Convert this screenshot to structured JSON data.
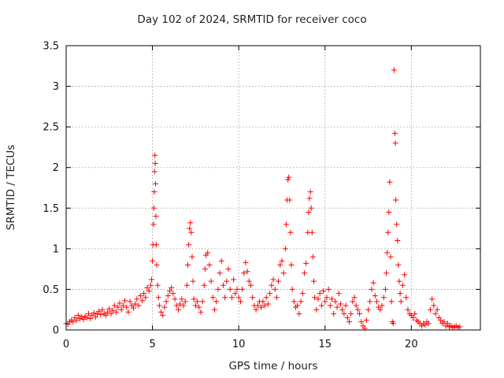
{
  "chart_data": {
    "type": "scatter",
    "title": "Day 102 of 2024, SRMTID for receiver coco",
    "xlabel": "GPS time / hours",
    "ylabel": "SRMTID / TECUs",
    "xlim": [
      0,
      24
    ],
    "ylim": [
      0,
      3.5
    ],
    "xticks": [
      0,
      5,
      10,
      15,
      20
    ],
    "yticks": [
      0,
      0.5,
      1,
      1.5,
      2,
      2.5,
      3,
      3.5
    ],
    "ytick_labels": [
      "0",
      "0.5",
      "1",
      "1.5",
      "2",
      "2.5",
      "3",
      "3.5"
    ],
    "grid": true,
    "marker": "+",
    "color": "#ff0000",
    "series": [
      {
        "name": "SRMTID",
        "points": [
          [
            0.0,
            0.08
          ],
          [
            0.1,
            0.07
          ],
          [
            0.2,
            0.1
          ],
          [
            0.3,
            0.12
          ],
          [
            0.4,
            0.1
          ],
          [
            0.5,
            0.15
          ],
          [
            0.6,
            0.12
          ],
          [
            0.7,
            0.18
          ],
          [
            0.8,
            0.14
          ],
          [
            0.9,
            0.16
          ],
          [
            1.0,
            0.13
          ],
          [
            1.1,
            0.17
          ],
          [
            1.2,
            0.15
          ],
          [
            1.3,
            0.2
          ],
          [
            1.4,
            0.14
          ],
          [
            1.5,
            0.18
          ],
          [
            1.6,
            0.21
          ],
          [
            1.7,
            0.16
          ],
          [
            1.8,
            0.2
          ],
          [
            1.9,
            0.23
          ],
          [
            2.0,
            0.19
          ],
          [
            2.1,
            0.25
          ],
          [
            2.2,
            0.2
          ],
          [
            2.3,
            0.18
          ],
          [
            2.4,
            0.22
          ],
          [
            2.5,
            0.26
          ],
          [
            2.6,
            0.2
          ],
          [
            2.7,
            0.24
          ],
          [
            2.8,
            0.3
          ],
          [
            2.9,
            0.22
          ],
          [
            3.0,
            0.28
          ],
          [
            3.1,
            0.33
          ],
          [
            3.2,
            0.25
          ],
          [
            3.3,
            0.3
          ],
          [
            3.4,
            0.36
          ],
          [
            3.5,
            0.28
          ],
          [
            3.6,
            0.22
          ],
          [
            3.7,
            0.35
          ],
          [
            3.8,
            0.3
          ],
          [
            3.9,
            0.27
          ],
          [
            4.0,
            0.32
          ],
          [
            4.1,
            0.38
          ],
          [
            4.2,
            0.3
          ],
          [
            4.3,
            0.42
          ],
          [
            4.4,
            0.36
          ],
          [
            4.5,
            0.45
          ],
          [
            4.6,
            0.4
          ],
          [
            4.7,
            0.52
          ],
          [
            4.8,
            0.48
          ],
          [
            4.9,
            0.55
          ],
          [
            4.95,
            0.62
          ],
          [
            5.0,
            0.85
          ],
          [
            5.03,
            1.05
          ],
          [
            5.06,
            1.3
          ],
          [
            5.08,
            1.5
          ],
          [
            5.1,
            1.7
          ],
          [
            5.12,
            1.95
          ],
          [
            5.14,
            2.15
          ],
          [
            5.16,
            2.05
          ],
          [
            5.18,
            1.8
          ],
          [
            5.2,
            1.4
          ],
          [
            5.22,
            1.05
          ],
          [
            5.25,
            0.8
          ],
          [
            5.3,
            0.55
          ],
          [
            5.35,
            0.4
          ],
          [
            5.4,
            0.3
          ],
          [
            5.5,
            0.22
          ],
          [
            5.6,
            0.18
          ],
          [
            5.7,
            0.28
          ],
          [
            5.8,
            0.35
          ],
          [
            5.9,
            0.42
          ],
          [
            6.0,
            0.48
          ],
          [
            6.1,
            0.52
          ],
          [
            6.2,
            0.45
          ],
          [
            6.3,
            0.38
          ],
          [
            6.4,
            0.3
          ],
          [
            6.5,
            0.25
          ],
          [
            6.6,
            0.32
          ],
          [
            6.7,
            0.38
          ],
          [
            6.8,
            0.3
          ],
          [
            6.9,
            0.35
          ],
          [
            7.0,
            0.55
          ],
          [
            7.05,
            0.8
          ],
          [
            7.1,
            1.05
          ],
          [
            7.15,
            1.25
          ],
          [
            7.2,
            1.32
          ],
          [
            7.25,
            1.2
          ],
          [
            7.3,
            0.9
          ],
          [
            7.35,
            0.6
          ],
          [
            7.4,
            0.38
          ],
          [
            7.5,
            0.3
          ],
          [
            7.6,
            0.35
          ],
          [
            7.7,
            0.28
          ],
          [
            7.8,
            0.22
          ],
          [
            7.9,
            0.35
          ],
          [
            8.0,
            0.55
          ],
          [
            8.05,
            0.75
          ],
          [
            8.1,
            0.92
          ],
          [
            8.2,
            0.95
          ],
          [
            8.3,
            0.8
          ],
          [
            8.4,
            0.6
          ],
          [
            8.5,
            0.4
          ],
          [
            8.6,
            0.25
          ],
          [
            8.7,
            0.35
          ],
          [
            8.8,
            0.5
          ],
          [
            8.9,
            0.7
          ],
          [
            9.0,
            0.85
          ],
          [
            9.1,
            0.55
          ],
          [
            9.2,
            0.4
          ],
          [
            9.3,
            0.6
          ],
          [
            9.4,
            0.75
          ],
          [
            9.5,
            0.5
          ],
          [
            9.6,
            0.4
          ],
          [
            9.7,
            0.62
          ],
          [
            9.8,
            0.45
          ],
          [
            9.9,
            0.5
          ],
          [
            10.0,
            0.4
          ],
          [
            10.1,
            0.35
          ],
          [
            10.2,
            0.5
          ],
          [
            10.3,
            0.7
          ],
          [
            10.4,
            0.83
          ],
          [
            10.5,
            0.72
          ],
          [
            10.6,
            0.6
          ],
          [
            10.7,
            0.55
          ],
          [
            10.8,
            0.4
          ],
          [
            10.9,
            0.3
          ],
          [
            11.0,
            0.25
          ],
          [
            11.1,
            0.3
          ],
          [
            11.2,
            0.35
          ],
          [
            11.3,
            0.28
          ],
          [
            11.4,
            0.35
          ],
          [
            11.5,
            0.3
          ],
          [
            11.6,
            0.4
          ],
          [
            11.7,
            0.32
          ],
          [
            11.8,
            0.45
          ],
          [
            11.9,
            0.55
          ],
          [
            12.0,
            0.62
          ],
          [
            12.1,
            0.5
          ],
          [
            12.2,
            0.4
          ],
          [
            12.3,
            0.6
          ],
          [
            12.4,
            0.8
          ],
          [
            12.5,
            0.85
          ],
          [
            12.6,
            0.7
          ],
          [
            12.7,
            1.0
          ],
          [
            12.75,
            1.3
          ],
          [
            12.8,
            1.6
          ],
          [
            12.85,
            1.85
          ],
          [
            12.9,
            1.88
          ],
          [
            12.95,
            1.6
          ],
          [
            13.0,
            1.2
          ],
          [
            13.05,
            0.8
          ],
          [
            13.1,
            0.5
          ],
          [
            13.2,
            0.35
          ],
          [
            13.3,
            0.28
          ],
          [
            13.4,
            0.3
          ],
          [
            13.5,
            0.2
          ],
          [
            13.6,
            0.35
          ],
          [
            13.7,
            0.45
          ],
          [
            13.8,
            0.7
          ],
          [
            13.9,
            0.82
          ],
          [
            14.0,
            1.2
          ],
          [
            14.05,
            1.45
          ],
          [
            14.1,
            1.62
          ],
          [
            14.15,
            1.7
          ],
          [
            14.2,
            1.5
          ],
          [
            14.25,
            1.2
          ],
          [
            14.3,
            0.9
          ],
          [
            14.35,
            0.6
          ],
          [
            14.4,
            0.4
          ],
          [
            14.5,
            0.25
          ],
          [
            14.6,
            0.38
          ],
          [
            14.7,
            0.45
          ],
          [
            14.8,
            0.3
          ],
          [
            14.9,
            0.48
          ],
          [
            15.0,
            0.35
          ],
          [
            15.1,
            0.4
          ],
          [
            15.2,
            0.5
          ],
          [
            15.3,
            0.3
          ],
          [
            15.4,
            0.38
          ],
          [
            15.5,
            0.2
          ],
          [
            15.6,
            0.35
          ],
          [
            15.7,
            0.28
          ],
          [
            15.8,
            0.45
          ],
          [
            15.9,
            0.32
          ],
          [
            16.0,
            0.25
          ],
          [
            16.1,
            0.2
          ],
          [
            16.2,
            0.3
          ],
          [
            16.3,
            0.15
          ],
          [
            16.4,
            0.1
          ],
          [
            16.5,
            0.2
          ],
          [
            16.6,
            0.35
          ],
          [
            16.7,
            0.4
          ],
          [
            16.8,
            0.3
          ],
          [
            16.9,
            0.25
          ],
          [
            17.0,
            0.2
          ],
          [
            17.1,
            0.1
          ],
          [
            17.2,
            0.05
          ],
          [
            17.3,
            0.02
          ],
          [
            17.4,
            0.12
          ],
          [
            17.5,
            0.25
          ],
          [
            17.6,
            0.35
          ],
          [
            17.7,
            0.5
          ],
          [
            17.8,
            0.58
          ],
          [
            17.9,
            0.42
          ],
          [
            18.0,
            0.35
          ],
          [
            18.1,
            0.28
          ],
          [
            18.2,
            0.25
          ],
          [
            18.3,
            0.3
          ],
          [
            18.4,
            0.4
          ],
          [
            18.5,
            0.5
          ],
          [
            18.55,
            0.7
          ],
          [
            18.6,
            0.95
          ],
          [
            18.65,
            1.2
          ],
          [
            18.7,
            1.45
          ],
          [
            18.75,
            1.82
          ],
          [
            18.8,
            0.9
          ],
          [
            18.85,
            0.35
          ],
          [
            18.9,
            0.1
          ],
          [
            18.95,
            0.08
          ],
          [
            19.0,
            3.2
          ],
          [
            19.05,
            2.42
          ],
          [
            19.08,
            2.3
          ],
          [
            19.1,
            1.6
          ],
          [
            19.15,
            1.3
          ],
          [
            19.2,
            1.1
          ],
          [
            19.25,
            0.8
          ],
          [
            19.3,
            0.6
          ],
          [
            19.35,
            0.45
          ],
          [
            19.4,
            0.35
          ],
          [
            19.5,
            0.55
          ],
          [
            19.6,
            0.68
          ],
          [
            19.7,
            0.4
          ],
          [
            19.8,
            0.25
          ],
          [
            19.9,
            0.2
          ],
          [
            20.0,
            0.18
          ],
          [
            20.1,
            0.15
          ],
          [
            20.2,
            0.2
          ],
          [
            20.3,
            0.12
          ],
          [
            20.4,
            0.1
          ],
          [
            20.5,
            0.08
          ],
          [
            20.6,
            0.05
          ],
          [
            20.7,
            0.08
          ],
          [
            20.8,
            0.06
          ],
          [
            20.9,
            0.1
          ],
          [
            21.0,
            0.08
          ],
          [
            21.1,
            0.25
          ],
          [
            21.2,
            0.38
          ],
          [
            21.3,
            0.3
          ],
          [
            21.4,
            0.2
          ],
          [
            21.5,
            0.25
          ],
          [
            21.6,
            0.15
          ],
          [
            21.7,
            0.12
          ],
          [
            21.8,
            0.08
          ],
          [
            21.9,
            0.1
          ],
          [
            22.0,
            0.05
          ],
          [
            22.1,
            0.08
          ],
          [
            22.2,
            0.04
          ],
          [
            22.3,
            0.05
          ],
          [
            22.4,
            0.03
          ],
          [
            22.5,
            0.04
          ],
          [
            22.6,
            0.05
          ],
          [
            22.7,
            0.03
          ],
          [
            22.8,
            0.04
          ]
        ]
      }
    ]
  }
}
